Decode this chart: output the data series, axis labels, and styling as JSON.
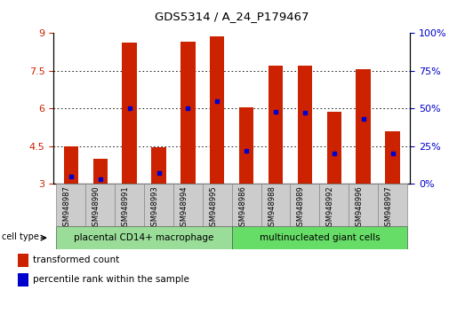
{
  "title": "GDS5314 / A_24_P179467",
  "samples": [
    "GSM948987",
    "GSM948990",
    "GSM948991",
    "GSM948993",
    "GSM948994",
    "GSM948995",
    "GSM948986",
    "GSM948988",
    "GSM948989",
    "GSM948992",
    "GSM948996",
    "GSM948997"
  ],
  "transformed_count": [
    4.5,
    4.0,
    8.6,
    4.45,
    8.65,
    8.85,
    6.05,
    7.7,
    7.7,
    5.85,
    7.55,
    5.1
  ],
  "percentile_rank": [
    5,
    3,
    50,
    7,
    50,
    55,
    22,
    48,
    47,
    20,
    43,
    20
  ],
  "bar_color": "#cc2200",
  "marker_color": "#0000cc",
  "y_min": 3,
  "y_max": 9,
  "y_ticks_left": [
    3,
    4.5,
    6,
    7.5,
    9
  ],
  "y_ticks_right": [
    0,
    25,
    50,
    75,
    100
  ],
  "grid_values": [
    4.5,
    6.0,
    7.5
  ],
  "group1_label": "placental CD14+ macrophage",
  "group1_count": 6,
  "group1_color": "#99dd99",
  "group2_label": "multinucleated giant cells",
  "group2_count": 6,
  "group2_color": "#66dd66",
  "cell_type_label": "cell type",
  "legend_label1": "transformed count",
  "legend_label2": "percentile rank within the sample",
  "bar_width": 0.5
}
